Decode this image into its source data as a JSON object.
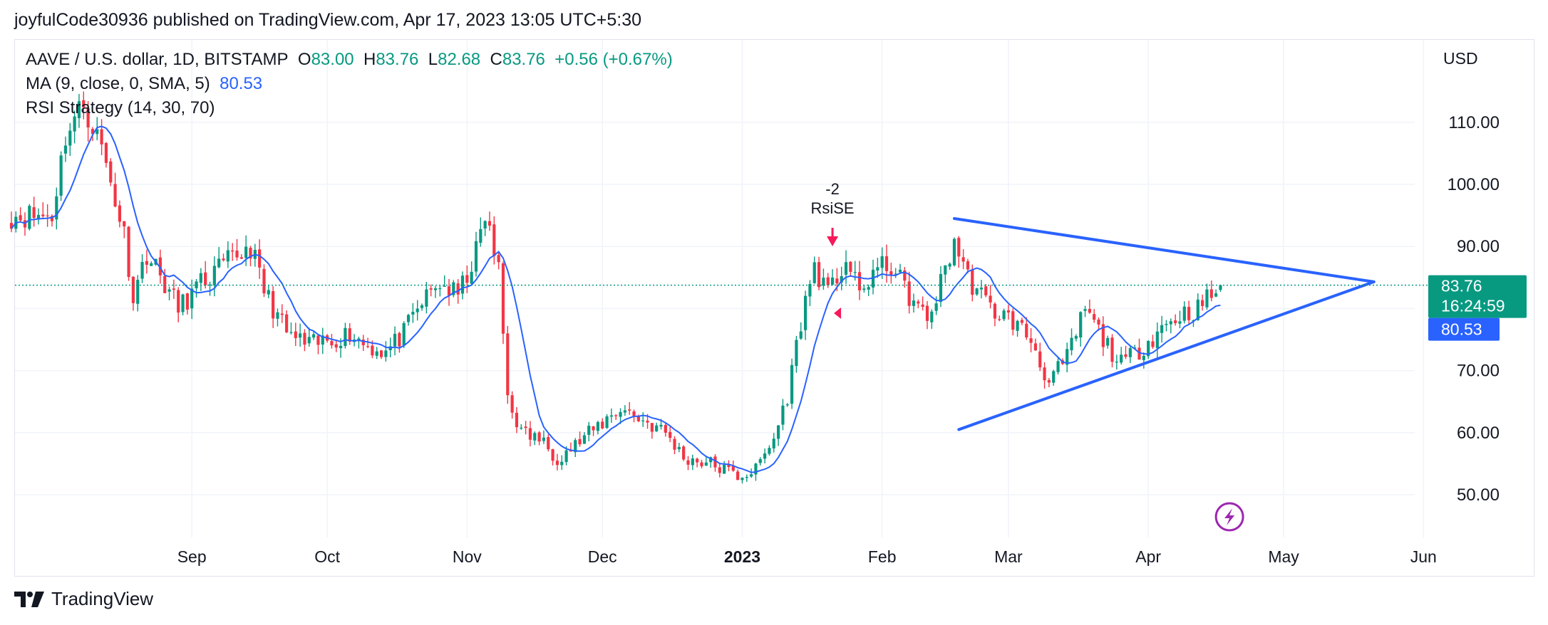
{
  "header": {
    "published_line": "joyfulCode30936 published on TradingView.com, Apr 17, 2023 13:05 UTC+5:30"
  },
  "legend": {
    "symbol": "AAVE / U.S. dollar, 1D, BITSTAMP",
    "o_label": "O",
    "o_value": "83.00",
    "h_label": "H",
    "h_value": "83.76",
    "l_label": "L",
    "l_value": "82.68",
    "c_label": "C",
    "c_value": "83.76",
    "change": "+0.56 (+0.67%)",
    "ma_label": "MA (9, close, 0, SMA, 5)",
    "ma_value": "80.53",
    "rsi_label": "RSI Strategy (14, 30, 70)"
  },
  "colors": {
    "up": "#089981",
    "down": "#f23645",
    "ma": "#2962ff",
    "trend": "#2962ff",
    "grid": "#f0f3fa",
    "signal": "#f7185b",
    "lightning": "#9c27b0"
  },
  "footer": {
    "brand": "TradingView"
  },
  "chart_data": {
    "type": "candlestick",
    "currency": "USD",
    "x_axis": {
      "ticks": [
        "Sep",
        "Oct",
        "Nov",
        "Dec",
        "2023",
        "Feb",
        "Mar",
        "Apr",
        "May",
        "Jun"
      ]
    },
    "y_axis": {
      "range": [
        42,
        122
      ],
      "ticks": [
        "50.00",
        "60.00",
        "70.00",
        "80.00",
        "90.00",
        "100.00",
        "110.00"
      ],
      "grid": true
    },
    "last_price": {
      "value": 83.76,
      "label": "83.76",
      "countdown": "16:24:59"
    },
    "ma_last": {
      "value": 80.53,
      "label": "80.53"
    },
    "ma_series": {
      "name": "MA (9, close, 0, SMA, 5)",
      "color": "#2962ff"
    },
    "signal": {
      "date": "2023-01-21",
      "count_label": "-2",
      "name": "RsiSE"
    },
    "trendlines": [
      {
        "from": [
          "2023-02-17",
          94.5
        ],
        "to": [
          "2023-05-21",
          84.3
        ]
      },
      {
        "from": [
          "2023-02-18",
          60.5
        ],
        "to": [
          "2023-05-21",
          84.3
        ]
      }
    ],
    "anchors": [
      [
        "2022-08-01",
        95
      ],
      [
        "2022-08-04",
        108
      ],
      [
        "2022-08-08",
        113
      ],
      [
        "2022-08-12",
        106
      ],
      [
        "2022-08-17",
        92
      ],
      [
        "2022-08-19",
        82
      ],
      [
        "2022-08-22",
        89
      ],
      [
        "2022-08-26",
        84
      ],
      [
        "2022-08-29",
        80
      ],
      [
        "2022-09-03",
        84
      ],
      [
        "2022-09-10",
        88
      ],
      [
        "2022-09-14",
        90
      ],
      [
        "2022-09-17",
        83
      ],
      [
        "2022-09-22",
        76
      ],
      [
        "2022-09-27",
        74
      ],
      [
        "2022-10-02",
        75
      ],
      [
        "2022-10-06",
        76
      ],
      [
        "2022-10-10",
        74
      ],
      [
        "2022-10-14",
        73
      ],
      [
        "2022-10-18",
        76
      ],
      [
        "2022-10-22",
        81
      ],
      [
        "2022-10-26",
        84
      ],
      [
        "2022-10-30",
        82
      ],
      [
        "2022-11-03",
        89
      ],
      [
        "2022-11-05",
        95
      ],
      [
        "2022-11-08",
        86
      ],
      [
        "2022-11-10",
        66
      ],
      [
        "2022-11-13",
        60
      ],
      [
        "2022-11-17",
        59
      ],
      [
        "2022-11-21",
        56
      ],
      [
        "2022-11-25",
        58
      ],
      [
        "2022-11-30",
        61
      ],
      [
        "2022-12-05",
        64
      ],
      [
        "2022-12-10",
        62
      ],
      [
        "2022-12-15",
        60
      ],
      [
        "2022-12-19",
        56
      ],
      [
        "2022-12-25",
        55
      ],
      [
        "2022-12-31",
        53
      ],
      [
        "2023-01-04",
        54
      ],
      [
        "2023-01-08",
        59
      ],
      [
        "2023-01-11",
        66
      ],
      [
        "2023-01-14",
        78
      ],
      [
        "2023-01-17",
        87
      ],
      [
        "2023-01-20",
        82
      ],
      [
        "2023-01-24",
        88
      ],
      [
        "2023-01-27",
        82
      ],
      [
        "2023-01-30",
        86
      ],
      [
        "2023-02-03",
        87
      ],
      [
        "2023-02-07",
        82
      ],
      [
        "2023-02-11",
        78
      ],
      [
        "2023-02-14",
        84
      ],
      [
        "2023-02-17",
        91
      ],
      [
        "2023-02-20",
        85
      ],
      [
        "2023-02-25",
        80
      ],
      [
        "2023-03-02",
        78
      ],
      [
        "2023-03-06",
        75
      ],
      [
        "2023-03-10",
        68
      ],
      [
        "2023-03-14",
        72
      ],
      [
        "2023-03-18",
        80
      ],
      [
        "2023-03-22",
        75
      ],
      [
        "2023-03-26",
        71
      ],
      [
        "2023-03-31",
        74
      ],
      [
        "2023-04-04",
        77
      ],
      [
        "2023-04-08",
        79
      ],
      [
        "2023-04-12",
        80
      ],
      [
        "2023-04-17",
        83.76
      ]
    ]
  }
}
